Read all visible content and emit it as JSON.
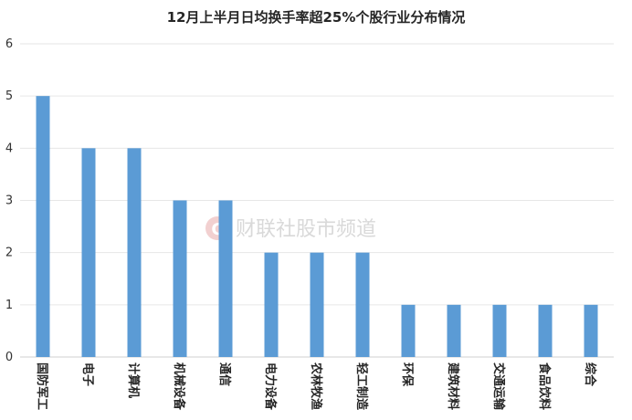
{
  "chart_data": {
    "type": "bar",
    "title": "12月上半月日均换手率超25%个股行业分布情况",
    "categories": [
      "国防军工",
      "电子",
      "计算机",
      "机械设备",
      "通信",
      "电力设备",
      "农林牧渔",
      "轻工制造",
      "环保",
      "建筑材料",
      "交通运输",
      "食品饮料",
      "综合"
    ],
    "values": [
      5,
      4,
      4,
      3,
      3,
      2,
      2,
      2,
      1,
      1,
      1,
      1,
      1
    ],
    "ylim": [
      0,
      6
    ],
    "yticks": [
      0,
      1,
      2,
      3,
      4,
      5,
      6
    ],
    "grid": true,
    "bar_color": "#5b9bd5"
  },
  "watermark": {
    "icon": "cailian-logo-icon",
    "text": "财联社股市频道"
  }
}
